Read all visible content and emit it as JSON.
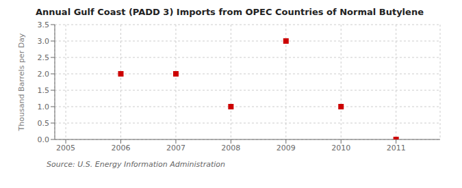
{
  "chart_data": {
    "type": "scatter",
    "title": "Annual Gulf Coast (PADD 3) Imports from OPEC Countries of Normal Butylene",
    "ylabel": "Thousand Barrels per Day",
    "annotations": [
      "Source: U.S. Energy Information Administration"
    ],
    "x": [
      2006,
      2007,
      2008,
      2009,
      2010,
      2011
    ],
    "values": [
      2.0,
      2.0,
      1.0,
      3.0,
      1.0,
      0.0
    ],
    "color": "#cc0000",
    "marker": "square",
    "xlim": [
      2004.8,
      2011.8
    ],
    "xticks": [
      2005,
      2006,
      2007,
      2008,
      2009,
      2010,
      2011
    ],
    "ylim": [
      0.0,
      3.5
    ],
    "yticks": [
      {
        "value": 0,
        "label": "0.0"
      },
      0.5,
      {
        "value": 1,
        "label": "1.0"
      },
      1.5,
      {
        "value": 2,
        "label": "2.0"
      },
      2.5,
      {
        "value": 3,
        "label": "3.0"
      },
      3.5
    ],
    "grid": true
  }
}
